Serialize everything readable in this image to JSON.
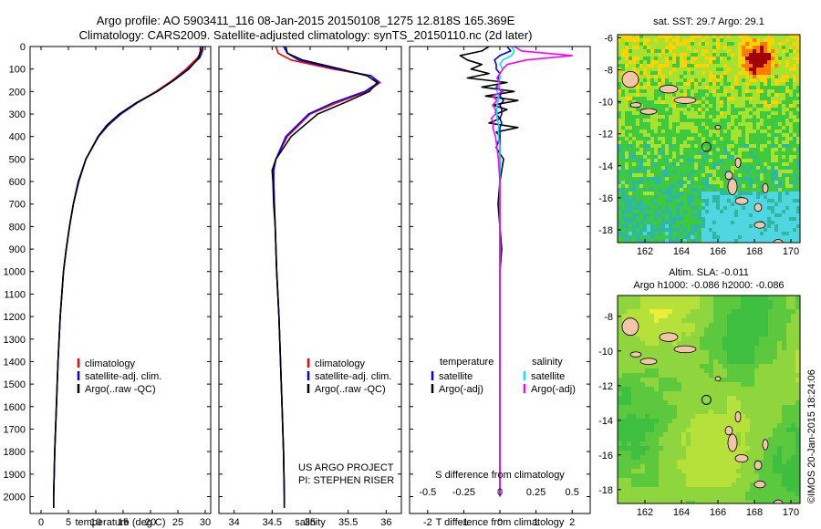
{
  "title_line1": "Argo profile: AO 5903411_116 08-Jan-2015 20150108_1275 12.818S 165.369E",
  "title_line2": "Climatology: CARS2009. Satellite-adjusted climatology: synTS_20150110.nc (2d later)",
  "sst_title": "sat. SST: 29.7 Argo: 29.1",
  "sla_title1": "Altim. SLA: -0.011",
  "sla_title2": "Argo h1000: -0.086 h2000: -0.086",
  "credit": "©IMOS 20-Jan-2015 18:24:06",
  "project_line1": "US ARGO PROJECT",
  "project_line2": "PI: STEPHEN RISER",
  "colors": {
    "climatology": "#ff0000",
    "satellite": "#0000ff",
    "argo": "#000000",
    "satellite_salinity": "#00e5ff",
    "argo_salinity": "#ff00ff",
    "land": "#f2c4a8"
  },
  "chart_data": [
    {
      "type": "line",
      "panel": "temperature",
      "xlabel": "temperature (deg C)",
      "xlim": [
        -2,
        31
      ],
      "xticks": [
        "0",
        "5",
        "10",
        "15",
        "20",
        "25",
        "30"
      ],
      "ylim": [
        0,
        2075
      ],
      "yticks": [
        "0",
        "100",
        "200",
        "300",
        "400",
        "500",
        "600",
        "700",
        "800",
        "900",
        "1000",
        "1100",
        "1200",
        "1300",
        "1400",
        "1500",
        "1600",
        "1700",
        "1800",
        "1900",
        "2000"
      ],
      "legend": [
        "climatology",
        "satellite-adj. clim.",
        "Argo(..raw -QC)"
      ],
      "depth": [
        0,
        20,
        50,
        100,
        150,
        200,
        250,
        300,
        350,
        400,
        500,
        600,
        700,
        800,
        900,
        1000,
        1200,
        1400,
        1600,
        1800,
        2000,
        2050
      ],
      "series": [
        {
          "name": "climatology",
          "values": [
            29.5,
            29.3,
            28.6,
            26.5,
            24.0,
            21.0,
            17.5,
            14.5,
            12.3,
            10.5,
            8.2,
            6.8,
            5.9,
            5.2,
            4.6,
            4.1,
            3.5,
            3.1,
            2.8,
            2.5,
            2.3,
            2.3
          ]
        },
        {
          "name": "satellite-adj. clim.",
          "values": [
            29.6,
            29.5,
            29.0,
            26.8,
            24.2,
            21.2,
            17.6,
            14.6,
            12.2,
            10.5,
            8.2,
            6.8,
            5.9,
            5.2,
            4.6,
            4.1,
            3.5,
            3.1,
            2.8,
            2.5,
            2.3,
            2.3
          ]
        },
        {
          "name": "Argo(..raw -QC)",
          "values": [
            29.1,
            29.1,
            28.8,
            27.0,
            24.3,
            21.2,
            17.4,
            14.3,
            12.0,
            10.4,
            8.2,
            6.9,
            5.9,
            5.2,
            4.6,
            4.1,
            3.5,
            3.1,
            2.8,
            2.5,
            2.3,
            2.3
          ]
        }
      ]
    },
    {
      "type": "line",
      "panel": "salinity",
      "xlabel": "salinity",
      "xlim": [
        33.8,
        36.2
      ],
      "xticks": [
        "34",
        "34.5",
        "35",
        "35.5",
        "36"
      ],
      "ylim": [
        0,
        2075
      ],
      "legend": [
        "climatology",
        "satellite-adj. clim.",
        "Argo(..raw -QC)"
      ],
      "depth": [
        0,
        30,
        60,
        100,
        130,
        160,
        200,
        250,
        300,
        400,
        500,
        550,
        600,
        700,
        800,
        1000,
        1200,
        1400,
        1600,
        1800,
        2000,
        2050
      ],
      "series": [
        {
          "name": "climatology",
          "values": [
            34.55,
            34.58,
            34.75,
            35.3,
            35.8,
            35.92,
            35.75,
            35.35,
            35.0,
            34.7,
            34.55,
            34.52,
            34.52,
            34.53,
            34.54,
            34.56,
            34.59,
            34.61,
            34.63,
            34.65,
            34.66,
            34.66
          ]
        },
        {
          "name": "satellite-adj. clim.",
          "values": [
            34.65,
            34.7,
            34.85,
            35.35,
            35.8,
            35.9,
            35.72,
            35.3,
            34.98,
            34.68,
            34.55,
            34.52,
            34.52,
            34.53,
            34.54,
            34.56,
            34.59,
            34.61,
            34.63,
            34.65,
            34.66,
            34.66
          ]
        },
        {
          "name": "Argo(..raw -QC)",
          "values": [
            34.68,
            34.7,
            34.9,
            35.4,
            35.75,
            35.88,
            35.78,
            35.45,
            35.1,
            34.75,
            34.55,
            34.5,
            34.51,
            34.52,
            34.54,
            34.56,
            34.59,
            34.61,
            34.63,
            34.65,
            34.66,
            34.66
          ]
        }
      ]
    },
    {
      "type": "line",
      "panel": "differences",
      "xlabel": "T difference from climatology",
      "xlabel_top": "S difference from climatology",
      "xlim": [
        -2.5,
        2.5
      ],
      "xticks": [
        "-2",
        "-1",
        "0",
        "1",
        "2"
      ],
      "xlim_top": [
        -0.625,
        0.625
      ],
      "xticks_top": [
        "-0.5",
        "-0.25",
        "0",
        "0.25",
        "0.5"
      ],
      "ylim": [
        0,
        2075
      ],
      "legend_temperature_title": "temperature",
      "legend_salinity_title": "salinity",
      "legend": [
        "satellite",
        "Argo(-adj)",
        "satellite",
        "Argo(-adj)"
      ],
      "depth": [
        0,
        20,
        40,
        60,
        80,
        100,
        120,
        140,
        160,
        180,
        200,
        220,
        240,
        260,
        280,
        300,
        320,
        340,
        360,
        380,
        400,
        450,
        500,
        600,
        700,
        800,
        900,
        1000,
        1200,
        1500,
        2000
      ],
      "series": [
        {
          "name": "T satellite",
          "values": [
            0.2,
            0.3,
            0.0,
            -0.15,
            -0.1,
            -0.1,
            0.0,
            -0.05,
            0.0,
            -0.1,
            0.05,
            0.0,
            0.1,
            0.0,
            0.05,
            0.05,
            0.0,
            0.05,
            0.0,
            0.0,
            0.0,
            0.0,
            0.0,
            0.0,
            0.0,
            0.0,
            0.0,
            0.0,
            0.0,
            0.0,
            0.0
          ]
        },
        {
          "name": "T Argo(-adj)",
          "values": [
            -0.3,
            -0.5,
            -1.1,
            -0.9,
            -0.5,
            -0.8,
            -0.3,
            -0.9,
            0.2,
            -0.5,
            0.4,
            -0.4,
            0.5,
            -0.2,
            0.2,
            -0.1,
            0.0,
            -0.3,
            0.5,
            -0.1,
            0.0,
            -0.1,
            0.1,
            0.0,
            -0.05,
            0.0,
            0.05,
            0.0,
            0.0,
            0.0,
            0.0
          ]
        },
        {
          "name": "S satellite",
          "values": [
            0.08,
            0.1,
            0.08,
            0.02,
            0.0,
            0.02,
            0.0,
            0.0,
            -0.01,
            0.0,
            -0.02,
            -0.01,
            -0.01,
            -0.02,
            -0.02,
            -0.02,
            -0.02,
            -0.01,
            -0.01,
            -0.01,
            -0.01,
            0.0,
            0.0,
            0.0,
            0.0,
            0.0,
            0.0,
            0.0,
            0.0,
            0.0,
            0.0
          ]
        },
        {
          "name": "S Argo(-adj)",
          "values": [
            0.1,
            0.15,
            0.5,
            0.18,
            0.05,
            0.02,
            0.0,
            -0.02,
            0.0,
            -0.02,
            0.02,
            -0.05,
            -0.02,
            -0.05,
            -0.03,
            -0.03,
            -0.06,
            -0.04,
            -0.05,
            -0.04,
            -0.03,
            -0.02,
            -0.01,
            0.0,
            0.0,
            0.0,
            0.0,
            0.0,
            0.0,
            0.0,
            0.0
          ]
        }
      ]
    },
    {
      "type": "heatmap",
      "panel": "sst-map",
      "xticks": [
        "162",
        "164",
        "166",
        "168",
        "170"
      ],
      "yticks": [
        "-6",
        "-8",
        "-10",
        "-12",
        "-14",
        "-16",
        "-18"
      ],
      "xlim": [
        160.5,
        170.5
      ],
      "ylim": [
        -18.8,
        -5.8
      ],
      "profile_location": [
        165.369,
        -12.818
      ]
    },
    {
      "type": "heatmap",
      "panel": "sla-map",
      "xticks": [
        "162",
        "164",
        "166",
        "168",
        "170"
      ],
      "yticks": [
        "-8",
        "-10",
        "-12",
        "-14",
        "-16",
        "-18"
      ],
      "xlim": [
        160.5,
        170.5
      ],
      "ylim": [
        -18.8,
        -6.8
      ],
      "profile_location": [
        165.369,
        -12.818
      ]
    }
  ]
}
